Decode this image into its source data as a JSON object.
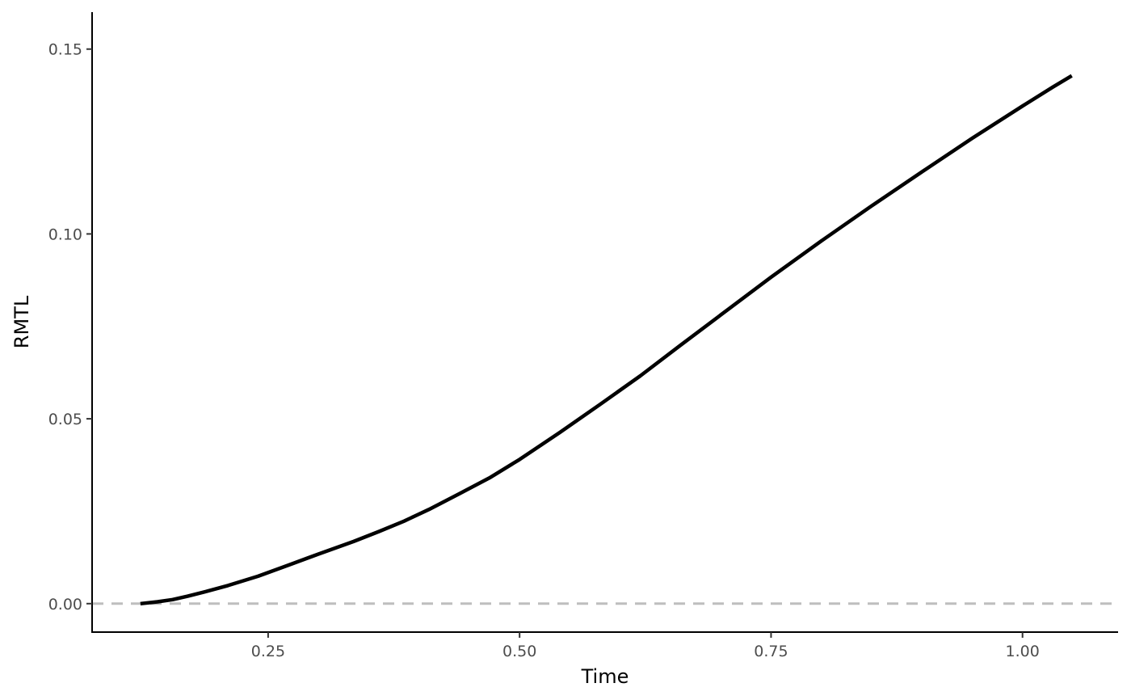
{
  "chart_data": {
    "type": "line",
    "title": "",
    "xlabel": "Time",
    "ylabel": "RMTL",
    "xlim": [
      0.075,
      1.095
    ],
    "ylim": [
      -0.0077,
      0.16
    ],
    "x_ticks": [
      0.25,
      0.5,
      0.75,
      1.0
    ],
    "x_tick_labels": [
      "0.25",
      "0.50",
      "0.75",
      "1.00"
    ],
    "y_ticks": [
      0.0,
      0.05,
      0.1,
      0.15
    ],
    "y_tick_labels": [
      "0.00",
      "0.05",
      "0.10",
      "0.15"
    ],
    "grid": false,
    "reference_line": {
      "y": 0.0,
      "style": "dashed",
      "color": "#bebebe"
    },
    "series": [
      {
        "color": "#000000",
        "x": [
          0.123,
          0.14,
          0.155,
          0.17,
          0.19,
          0.21,
          0.24,
          0.27,
          0.3,
          0.335,
          0.36,
          0.385,
          0.41,
          0.44,
          0.47,
          0.5,
          0.54,
          0.58,
          0.62,
          0.66,
          0.7,
          0.75,
          0.8,
          0.85,
          0.9,
          0.95,
          1.0,
          1.03,
          1.049
        ],
        "y": [
          0.0,
          0.0005,
          0.0011,
          0.002,
          0.0034,
          0.0049,
          0.0074,
          0.0104,
          0.0134,
          0.0168,
          0.0195,
          0.0223,
          0.0255,
          0.0297,
          0.034,
          0.039,
          0.0463,
          0.0539,
          0.0616,
          0.0699,
          0.0781,
          0.0883,
          0.0981,
          0.1076,
          0.1168,
          0.1259,
          0.1346,
          0.1397,
          0.1428
        ]
      }
    ]
  }
}
